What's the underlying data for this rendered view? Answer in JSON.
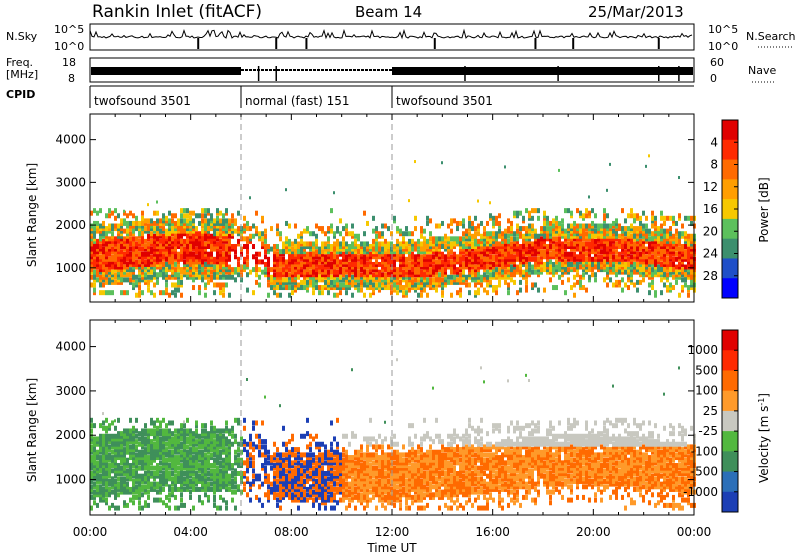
{
  "header": {
    "station": "Rankin Inlet (fitACF)",
    "beam": "Beam 14",
    "date": "25/Mar/2013"
  },
  "strips": {
    "nsky_label": "N.Sky",
    "nsky_ticks": [
      "10^5",
      "10^0"
    ],
    "nsearch_label": "N.Search",
    "nsearch_ticks": [
      "10^5",
      "10^0"
    ],
    "freq_label_1": "Freq.",
    "freq_label_2": "[MHz]",
    "freq_ticks": [
      "18",
      "8"
    ],
    "nave_label": "Nave",
    "nave_ticks": [
      "60",
      "0"
    ],
    "cpid_label": "CPID",
    "cpid_segments": [
      {
        "label": "twofsound 3501",
        "start_hour": 0,
        "end_hour": 6
      },
      {
        "label": "normal (fast) 151",
        "start_hour": 6,
        "end_hour": 12
      },
      {
        "label": "twofsound 3501",
        "start_hour": 12,
        "end_hour": 24
      }
    ]
  },
  "chart_data": [
    {
      "type": "heatmap",
      "name": "power",
      "ylabel": "Slant Range [km]",
      "yticks": [
        "1000",
        "2000",
        "3000",
        "4000"
      ],
      "ylim": [
        200,
        4600
      ],
      "colorbar_label": "Power [dB]",
      "colorbar_ticks": [
        "4",
        "8",
        "12",
        "16",
        "20",
        "24",
        "28"
      ],
      "colorbar_colors": [
        "#0000ff",
        "#1f4fc8",
        "#3c8f6e",
        "#5cc05c",
        "#f6c800",
        "#ff9e00",
        "#ff6a00",
        "#ff2a00",
        "#e00000"
      ]
    },
    {
      "type": "heatmap",
      "name": "velocity",
      "ylabel": "Slant Range [km]",
      "yticks": [
        "1000",
        "2000",
        "3000",
        "4000"
      ],
      "ylim": [
        200,
        4600
      ],
      "xlabel": "Time UT",
      "xticks": [
        "00:00",
        "04:00",
        "08:00",
        "12:00",
        "16:00",
        "20:00",
        "00:00"
      ],
      "colorbar_label": "Velocity [m s",
      "colorbar_label_sup": "-1",
      "colorbar_label_end": "]",
      "colorbar_ticks": [
        "1000",
        "500",
        "100",
        "25",
        "-25",
        "-100",
        "-500",
        "-1000"
      ],
      "colorbar_colors": [
        "#1c3fb5",
        "#2b6fb8",
        "#3f8f5a",
        "#52b83f",
        "#c8c8c0",
        "#ff9a2a",
        "#ff6a00",
        "#ff2a00",
        "#e00000"
      ]
    }
  ]
}
